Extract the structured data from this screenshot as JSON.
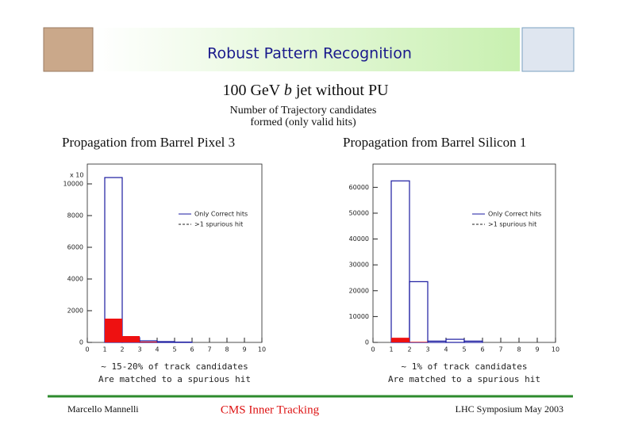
{
  "slide": {
    "title": "Robust Pattern Recognition",
    "subtitle": [
      "100 GeV",
      "b",
      "jet without PU"
    ],
    "note": [
      "Number of Trajectory candidates",
      "formed (only valid hits)"
    ],
    "footer": {
      "left": "Marcello Mannelli",
      "center": "CMS Inner Tracking",
      "right": "LHC Symposium May 2003"
    }
  },
  "chart_data": [
    {
      "type": "histogram",
      "title": "Propagation from Barrel Pixel 3",
      "y_multiplier": "x 10",
      "bins": [
        0,
        1,
        2,
        3,
        4,
        5,
        6,
        7,
        8,
        9,
        10
      ],
      "series": [
        {
          "name": "Only Correct hits",
          "color": "#1a1aa0",
          "filled": false,
          "line_style": "solid",
          "values": [
            0,
            10400,
            300,
            100,
            50,
            20,
            0,
            0,
            0,
            0
          ]
        },
        {
          "name": ">1 spurious hit",
          "color": "#ee1111",
          "filled": true,
          "line_style": "dashed",
          "values": [
            0,
            1500,
            400,
            50,
            0,
            0,
            0,
            0,
            0,
            0
          ]
        }
      ],
      "xlim": [
        0,
        10
      ],
      "ylim": [
        0,
        11250
      ],
      "xticks": [
        0,
        1,
        2,
        3,
        4,
        5,
        6,
        7,
        8,
        9,
        10
      ],
      "yticks": [
        0,
        2000,
        4000,
        6000,
        8000,
        10000
      ],
      "legend": "right",
      "caption": [
        "~ 15-20% of track candidates",
        "Are matched to a spurious hit"
      ]
    },
    {
      "type": "histogram",
      "title": "Propagation from Barrel Silicon 1",
      "bins": [
        0,
        1,
        2,
        3,
        4,
        5,
        6,
        7,
        8,
        9,
        10
      ],
      "series": [
        {
          "name": "Only Correct hits",
          "color": "#1a1aa0",
          "filled": false,
          "line_style": "solid",
          "values": [
            0,
            62500,
            23500,
            500,
            1200,
            500,
            0,
            0,
            0,
            0
          ]
        },
        {
          "name": ">1 spurious hit",
          "color": "#ee1111",
          "filled": true,
          "line_style": "dashed",
          "values": [
            0,
            1800,
            200,
            0,
            0,
            0,
            0,
            0,
            0,
            0
          ]
        }
      ],
      "xlim": [
        0,
        10
      ],
      "ylim": [
        0,
        69000
      ],
      "xticks": [
        0,
        1,
        2,
        3,
        4,
        5,
        6,
        7,
        8,
        9,
        10
      ],
      "yticks": [
        0,
        10000,
        20000,
        30000,
        40000,
        50000,
        60000
      ],
      "legend": "right",
      "caption": [
        "~ 1% of track candidates",
        "Are matched to a spurious hit"
      ]
    }
  ]
}
